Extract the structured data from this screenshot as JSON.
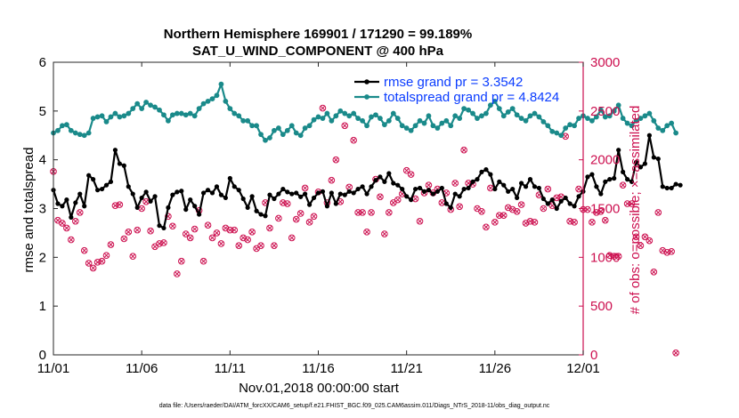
{
  "chart_data": {
    "type": "line",
    "title": "Northern Hemisphere 169901 / 171290 = 99.189%",
    "subtitle": "SAT_U_WIND_COMPONENT @ 400 hPa",
    "xlabel": "Nov.01,2018 00:00:00 start",
    "ylabel": "rmse and totalspread",
    "ylabel_right": "# of obs: o=possible; ×=assimilated",
    "xlim": [
      0,
      30
    ],
    "ylim": [
      0,
      6
    ],
    "ylim_right": [
      0,
      3000
    ],
    "x_ticks": [
      0,
      5,
      10,
      15,
      20,
      25,
      30
    ],
    "x_tick_labels": [
      "11/01",
      "11/06",
      "11/11",
      "11/16",
      "11/21",
      "11/26",
      "12/01"
    ],
    "y_ticks": [
      "0",
      "1",
      "2",
      "3",
      "4",
      "5",
      "6"
    ],
    "y_ticks_right": [
      "0",
      "500",
      "1000",
      "1500",
      "2000",
      "2500",
      "3000"
    ],
    "colors": {
      "rmse": "#000000",
      "spread": "#1a8a8a",
      "obs": "#cc0f4f",
      "legend_text": "#0a3cff"
    },
    "series": [
      {
        "name": "rmse grand pr = 3.3542",
        "axis": "left",
        "x_start": 0,
        "x_step": 0.25,
        "values": [
          3.38,
          3.1,
          3.05,
          3.18,
          2.82,
          3.12,
          3.3,
          3.05,
          3.68,
          3.6,
          3.38,
          3.4,
          3.48,
          3.55,
          4.2,
          3.92,
          3.88,
          3.45,
          3.3,
          3.02,
          3.22,
          3.34,
          3.15,
          3.25,
          2.65,
          2.6,
          3.02,
          3.28,
          3.34,
          3.36,
          2.98,
          3.18,
          3.05,
          2.88,
          3.32,
          3.38,
          3.32,
          3.45,
          3.28,
          3.22,
          3.62,
          3.45,
          3.38,
          3.2,
          3.02,
          3.25,
          2.95,
          2.88,
          2.85,
          3.28,
          3.2,
          3.3,
          3.4,
          3.34,
          3.3,
          3.32,
          3.24,
          3.3,
          3.08,
          3.22,
          3.32,
          3.35,
          3.05,
          3.32,
          3.1,
          3.3,
          3.28,
          3.35,
          3.32,
          3.4,
          3.45,
          3.3,
          3.45,
          3.58,
          3.65,
          3.55,
          3.72,
          3.52,
          3.48,
          3.4,
          3.25,
          3.18,
          3.4,
          3.42,
          3.35,
          3.38,
          3.3,
          3.35,
          3.42,
          3.1,
          3.02,
          3.3,
          3.25,
          3.4,
          3.42,
          3.55,
          3.6,
          3.75,
          3.8,
          3.7,
          3.4,
          3.55,
          3.48,
          3.35,
          3.4,
          3.22,
          3.52,
          3.45,
          3.6,
          3.45,
          3.42,
          3.2,
          3.1,
          3.18,
          3.0,
          3.15,
          3.22,
          3.1,
          3.05,
          3.25,
          3.35,
          3.65,
          3.7,
          3.45,
          3.3,
          3.55,
          3.6,
          3.62,
          4.2,
          3.75,
          3.6,
          3.55,
          3.95,
          3.85,
          3.92,
          4.5,
          4.05,
          4.02,
          3.45,
          3.42,
          3.42,
          3.5,
          3.48
        ]
      },
      {
        "name": "totalspread grand pr = 4.8424",
        "axis": "left",
        "x_start": 0,
        "x_step": 0.25,
        "values": [
          4.55,
          4.6,
          4.7,
          4.72,
          4.6,
          4.55,
          4.52,
          4.5,
          4.55,
          4.85,
          4.88,
          4.9,
          4.78,
          4.88,
          4.95,
          4.88,
          4.9,
          4.95,
          5.05,
          5.15,
          5.05,
          5.18,
          5.12,
          5.08,
          5.02,
          4.92,
          4.8,
          4.92,
          4.95,
          4.95,
          4.92,
          4.95,
          4.9,
          5.05,
          5.15,
          5.2,
          5.25,
          5.32,
          5.55,
          5.2,
          5.05,
          4.95,
          4.9,
          4.8,
          4.8,
          4.7,
          4.7,
          4.52,
          4.4,
          4.45,
          4.6,
          4.65,
          4.52,
          4.6,
          4.7,
          4.55,
          4.5,
          4.65,
          4.7,
          4.82,
          4.88,
          4.85,
          4.95,
          4.8,
          4.9,
          5.0,
          4.95,
          4.9,
          4.95,
          4.85,
          4.8,
          4.7,
          4.88,
          4.92,
          4.85,
          4.72,
          4.8,
          4.95,
          4.85,
          4.7,
          4.65,
          4.6,
          4.7,
          4.8,
          4.75,
          4.9,
          4.7,
          4.65,
          4.75,
          4.8,
          4.7,
          4.9,
          4.85,
          5.05,
          5.02,
          4.95,
          4.85,
          4.9,
          4.95,
          5.12,
          5.2,
          5.05,
          4.9,
          4.98,
          5.05,
          4.92,
          4.85,
          4.8,
          4.9,
          4.95,
          4.88,
          4.78,
          4.7,
          4.58,
          4.55,
          4.5,
          4.65,
          4.72,
          4.7,
          4.85,
          4.9,
          4.85,
          4.8,
          4.88,
          5.02,
          4.88,
          4.9,
          5.0,
          5.12,
          4.85,
          4.75,
          4.7,
          4.8,
          4.85,
          4.9,
          4.95,
          4.8,
          4.65,
          4.6,
          4.7,
          4.75,
          4.55
        ]
      },
      {
        "name": "obs possible / assimilated",
        "axis": "right",
        "x_start": 0,
        "x_step": 0.25,
        "values": [
          1880,
          1380,
          1350,
          1300,
          1180,
          1370,
          1460,
          1070,
          940,
          890,
          950,
          960,
          1020,
          1130,
          1530,
          1540,
          1190,
          1260,
          1010,
          1280,
          1500,
          1570,
          1270,
          1110,
          1140,
          1150,
          1420,
          1320,
          830,
          960,
          1240,
          1200,
          1290,
          1480,
          960,
          1330,
          1200,
          1250,
          1140,
          1300,
          1280,
          1280,
          1120,
          1200,
          1180,
          1260,
          1090,
          1120,
          1560,
          1300,
          1120,
          1400,
          1560,
          1550,
          1200,
          1390,
          1450,
          1710,
          1360,
          1420,
          1670,
          2530,
          1560,
          1790,
          2000,
          1570,
          2350,
          1720,
          2200,
          1460,
          1460,
          1260,
          1460,
          1800,
          1620,
          1240,
          1460,
          1560,
          1590,
          1650,
          1890,
          1850,
          1600,
          1370,
          1660,
          1740,
          1660,
          1700,
          1560,
          1660,
          1490,
          1760,
          1520,
          2100,
          1760,
          1750,
          1500,
          1470,
          1310,
          1710,
          1360,
          1430,
          1430,
          1510,
          1490,
          1470,
          1540,
          1350,
          1370,
          1360,
          1640,
          1500,
          1700,
          1530,
          1610,
          1620,
          2240,
          1370,
          1360,
          1700,
          1490,
          1490,
          1360,
          1460,
          1470,
          1380,
          1020,
          1010,
          1010,
          1740,
          1550,
          1550,
          1210,
          1120,
          1210,
          1170,
          850,
          1460,
          1070,
          1050,
          1060,
          20
        ]
      }
    ],
    "legend": {
      "placement": "top-right",
      "entries": [
        "rmse grand pr = 3.3542",
        "totalspread grand pr = 4.8424"
      ]
    },
    "footnote": "data file: /Users/raeder/DAI/ATM_forcXX/CAM6_setup/f.e21.FHIST_BGC.f09_025.CAM6assim.011/Diags_NTrS_2018-11/obs_diag_output.nc"
  }
}
